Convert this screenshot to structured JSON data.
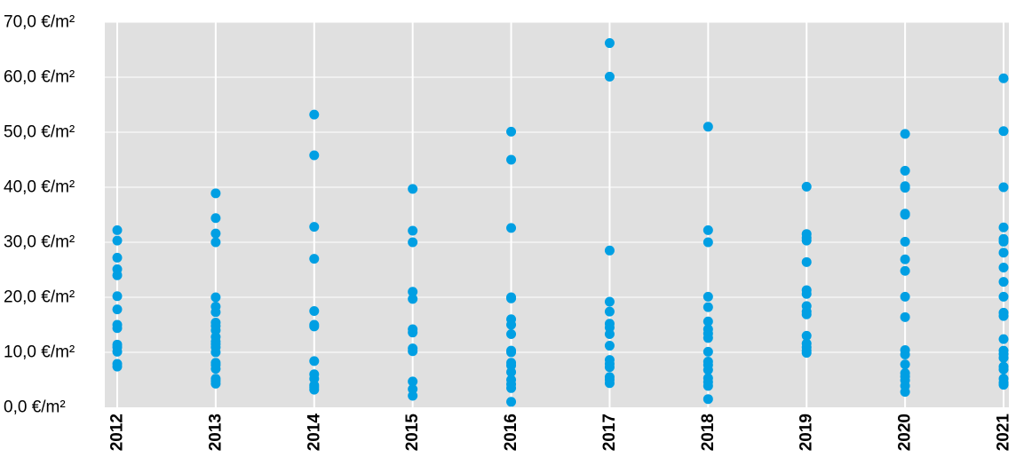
{
  "chart_data": {
    "type": "scatter",
    "title": "",
    "xlabel": "",
    "ylabel": "",
    "categories": [
      "2012",
      "2013",
      "2014",
      "2015",
      "2016",
      "2017",
      "2018",
      "2019",
      "2020",
      "2021"
    ],
    "ylim": [
      0,
      70
    ],
    "yticks": [
      0,
      10,
      20,
      30,
      40,
      50,
      60,
      70
    ],
    "ytick_labels": [
      "0,0 €/m²",
      "10,0 €/m²",
      "20,0 €/m²",
      "30,0 €/m²",
      "40,0 €/m²",
      "50,0 €/m²",
      "60,0 €/m²",
      "70,0 €/m²"
    ],
    "grid": true,
    "legend": "none",
    "colors": {
      "point": "#009fe3",
      "plot_background": "#e0e0e0",
      "gridline": "#ffffff"
    },
    "series": [
      {
        "values": [
          [
            "2012",
            32.2
          ],
          [
            "2012",
            30.3
          ],
          [
            "2012",
            27.2
          ],
          [
            "2012",
            25.1
          ],
          [
            "2012",
            24.0
          ],
          [
            "2012",
            20.2
          ],
          [
            "2012",
            17.8
          ],
          [
            "2012",
            15.0
          ],
          [
            "2012",
            14.4
          ],
          [
            "2012",
            11.4
          ],
          [
            "2012",
            10.9
          ],
          [
            "2012",
            10.1
          ],
          [
            "2012",
            7.9
          ],
          [
            "2012",
            7.4
          ],
          [
            "2013",
            38.9
          ],
          [
            "2013",
            34.4
          ],
          [
            "2013",
            31.6
          ],
          [
            "2013",
            30.0
          ],
          [
            "2013",
            20.0
          ],
          [
            "2013",
            18.3
          ],
          [
            "2013",
            17.3
          ],
          [
            "2013",
            15.4
          ],
          [
            "2013",
            14.8
          ],
          [
            "2013",
            14.0
          ],
          [
            "2013",
            12.8
          ],
          [
            "2013",
            12.0
          ],
          [
            "2013",
            11.5
          ],
          [
            "2013",
            10.9
          ],
          [
            "2013",
            10.0
          ],
          [
            "2013",
            8.1
          ],
          [
            "2013",
            7.7
          ],
          [
            "2013",
            7.0
          ],
          [
            "2013",
            5.2
          ],
          [
            "2013",
            4.8
          ],
          [
            "2013",
            4.3
          ],
          [
            "2014",
            53.2
          ],
          [
            "2014",
            45.8
          ],
          [
            "2014",
            32.8
          ],
          [
            "2014",
            27.0
          ],
          [
            "2014",
            17.5
          ],
          [
            "2014",
            15.0
          ],
          [
            "2014",
            14.7
          ],
          [
            "2014",
            8.4
          ],
          [
            "2014",
            6.0
          ],
          [
            "2014",
            5.2
          ],
          [
            "2014",
            4.0
          ],
          [
            "2014",
            3.6
          ],
          [
            "2014",
            3.2
          ],
          [
            "2015",
            39.7
          ],
          [
            "2015",
            32.1
          ],
          [
            "2015",
            30.0
          ],
          [
            "2015",
            21.0
          ],
          [
            "2015",
            19.7
          ],
          [
            "2015",
            14.2
          ],
          [
            "2015",
            13.6
          ],
          [
            "2015",
            10.7
          ],
          [
            "2015",
            10.2
          ],
          [
            "2015",
            4.7
          ],
          [
            "2015",
            3.3
          ],
          [
            "2015",
            2.1
          ],
          [
            "2016",
            50.1
          ],
          [
            "2016",
            45.0
          ],
          [
            "2016",
            32.6
          ],
          [
            "2016",
            20.0
          ],
          [
            "2016",
            19.8
          ],
          [
            "2016",
            16.0
          ],
          [
            "2016",
            15.0
          ],
          [
            "2016",
            13.3
          ],
          [
            "2016",
            10.3
          ],
          [
            "2016",
            10.0
          ],
          [
            "2016",
            8.1
          ],
          [
            "2016",
            7.6
          ],
          [
            "2016",
            6.4
          ],
          [
            "2016",
            5.0
          ],
          [
            "2016",
            4.2
          ],
          [
            "2016",
            3.5
          ],
          [
            "2016",
            1.0
          ],
          [
            "2017",
            66.2
          ],
          [
            "2017",
            60.1
          ],
          [
            "2017",
            28.5
          ],
          [
            "2017",
            19.2
          ],
          [
            "2017",
            17.4
          ],
          [
            "2017",
            15.2
          ],
          [
            "2017",
            14.5
          ],
          [
            "2017",
            13.3
          ],
          [
            "2017",
            11.2
          ],
          [
            "2017",
            8.6
          ],
          [
            "2017",
            7.9
          ],
          [
            "2017",
            7.3
          ],
          [
            "2017",
            5.5
          ],
          [
            "2017",
            5.0
          ],
          [
            "2017",
            4.4
          ],
          [
            "2018",
            51.0
          ],
          [
            "2018",
            32.2
          ],
          [
            "2018",
            30.0
          ],
          [
            "2018",
            20.1
          ],
          [
            "2018",
            18.2
          ],
          [
            "2018",
            15.6
          ],
          [
            "2018",
            14.2
          ],
          [
            "2018",
            13.4
          ],
          [
            "2018",
            12.6
          ],
          [
            "2018",
            10.1
          ],
          [
            "2018",
            8.3
          ],
          [
            "2018",
            7.7
          ],
          [
            "2018",
            6.8
          ],
          [
            "2018",
            5.3
          ],
          [
            "2018",
            4.6
          ],
          [
            "2018",
            3.9
          ],
          [
            "2018",
            1.5
          ],
          [
            "2019",
            40.1
          ],
          [
            "2019",
            31.5
          ],
          [
            "2019",
            30.8
          ],
          [
            "2019",
            30.3
          ],
          [
            "2019",
            26.4
          ],
          [
            "2019",
            21.3
          ],
          [
            "2019",
            20.6
          ],
          [
            "2019",
            18.4
          ],
          [
            "2019",
            17.4
          ],
          [
            "2019",
            16.9
          ],
          [
            "2019",
            13.0
          ],
          [
            "2019",
            11.6
          ],
          [
            "2019",
            10.9
          ],
          [
            "2019",
            10.3
          ],
          [
            "2019",
            9.9
          ],
          [
            "2020",
            49.7
          ],
          [
            "2020",
            43.0
          ],
          [
            "2020",
            40.2
          ],
          [
            "2020",
            39.9
          ],
          [
            "2020",
            35.2
          ],
          [
            "2020",
            35.0
          ],
          [
            "2020",
            30.1
          ],
          [
            "2020",
            26.9
          ],
          [
            "2020",
            24.8
          ],
          [
            "2020",
            20.1
          ],
          [
            "2020",
            16.4
          ],
          [
            "2020",
            10.4
          ],
          [
            "2020",
            9.6
          ],
          [
            "2020",
            7.8
          ],
          [
            "2020",
            6.2
          ],
          [
            "2020",
            5.6
          ],
          [
            "2020",
            4.9
          ],
          [
            "2020",
            3.9
          ],
          [
            "2020",
            2.8
          ],
          [
            "2021",
            59.8
          ],
          [
            "2021",
            50.2
          ],
          [
            "2021",
            40.0
          ],
          [
            "2021",
            32.7
          ],
          [
            "2021",
            30.6
          ],
          [
            "2021",
            30.1
          ],
          [
            "2021",
            28.1
          ],
          [
            "2021",
            25.4
          ],
          [
            "2021",
            22.8
          ],
          [
            "2021",
            20.1
          ],
          [
            "2021",
            17.2
          ],
          [
            "2021",
            16.6
          ],
          [
            "2021",
            12.4
          ],
          [
            "2021",
            10.3
          ],
          [
            "2021",
            9.7
          ],
          [
            "2021",
            9.0
          ],
          [
            "2021",
            7.4
          ],
          [
            "2021",
            6.9
          ],
          [
            "2021",
            5.2
          ],
          [
            "2021",
            4.5
          ],
          [
            "2021",
            4.1
          ]
        ]
      }
    ]
  }
}
